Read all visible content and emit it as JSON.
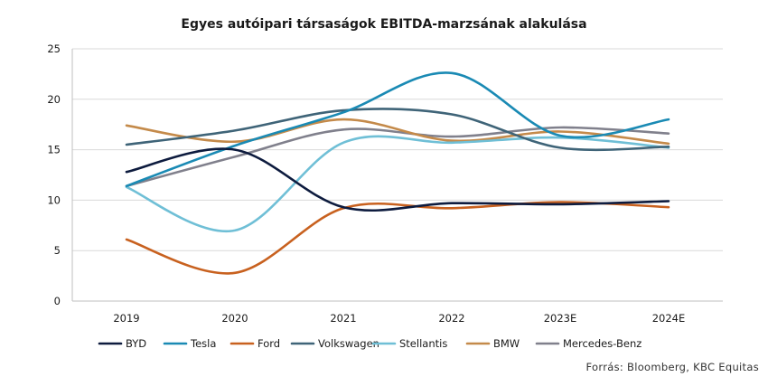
{
  "chart_data": {
    "type": "line",
    "title": "Egyes autóipari társaságok EBITDA-marzsának alakulása",
    "categories": [
      "2019",
      "2020",
      "2021",
      "2022",
      "2023E",
      "2024E"
    ],
    "ylim": [
      0,
      25
    ],
    "yticks": [
      0,
      5,
      10,
      15,
      20,
      25
    ],
    "grid": true,
    "legend_position": "bottom",
    "series": [
      {
        "name": "BYD",
        "color": "#0d1b3e",
        "values": [
          12.8,
          15.0,
          9.3,
          9.7,
          9.6,
          9.9
        ]
      },
      {
        "name": "Tesla",
        "color": "#1a8ab4",
        "values": [
          11.4,
          15.4,
          18.7,
          22.6,
          16.4,
          18.0
        ]
      },
      {
        "name": "Ford",
        "color": "#c8611f",
        "values": [
          6.1,
          2.8,
          9.2,
          9.2,
          9.8,
          9.3
        ]
      },
      {
        "name": "Volkswagen",
        "color": "#3f6478",
        "values": [
          15.5,
          16.9,
          18.9,
          18.5,
          15.2,
          15.3
        ]
      },
      {
        "name": "Stellantis",
        "color": "#6fbfd6",
        "values": [
          11.3,
          7.0,
          15.7,
          15.7,
          16.2,
          15.2
        ]
      },
      {
        "name": "BMW",
        "color": "#c48a4a",
        "values": [
          17.4,
          15.8,
          18.0,
          15.9,
          16.8,
          15.6
        ]
      },
      {
        "name": "Mercedes-Benz",
        "color": "#80808c",
        "values": [
          11.4,
          14.3,
          17.0,
          16.3,
          17.2,
          16.6
        ]
      }
    ]
  },
  "source": "Forrás: Bloomberg,  KBC Equitas"
}
